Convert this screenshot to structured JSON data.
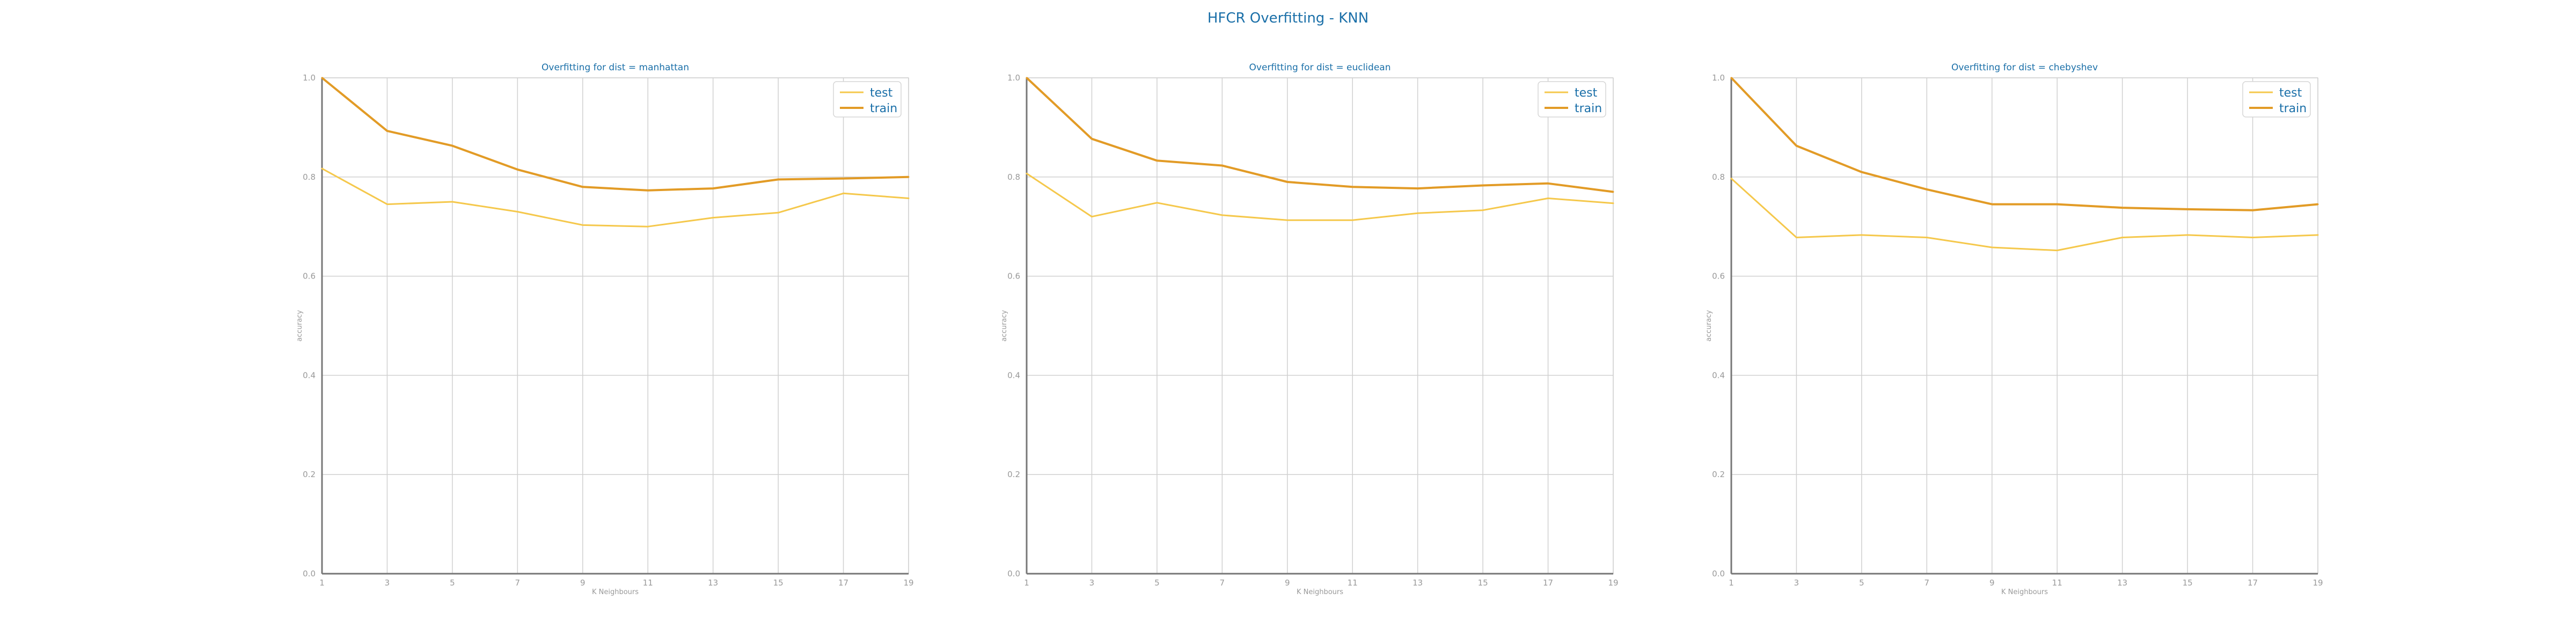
{
  "title": "HFCR Overfitting - KNN",
  "colors": {
    "test": "#f5c84c",
    "train": "#e29b26",
    "title": "#1a6fa8"
  },
  "chart_data": [
    {
      "type": "line",
      "title": "Overfitting for dist = manhattan",
      "xlabel": "K Neighbours",
      "ylabel": "accuracy",
      "x": [
        1,
        3,
        5,
        7,
        9,
        11,
        13,
        15,
        17,
        19
      ],
      "ylim": [
        0.0,
        1.0
      ],
      "yticks": [
        "0.0",
        "0.2",
        "0.4",
        "0.6",
        "0.8",
        "1.0"
      ],
      "grid": true,
      "legend": "top-right",
      "series": [
        {
          "name": "test",
          "values": [
            0.817,
            0.745,
            0.75,
            0.73,
            0.703,
            0.7,
            0.718,
            0.728,
            0.767,
            0.757
          ]
        },
        {
          "name": "train",
          "values": [
            1.0,
            0.893,
            0.863,
            0.815,
            0.78,
            0.773,
            0.777,
            0.795,
            0.797,
            0.8
          ]
        }
      ]
    },
    {
      "type": "line",
      "title": "Overfitting for dist = euclidean",
      "xlabel": "K Neighbours",
      "ylabel": "accuracy",
      "x": [
        1,
        3,
        5,
        7,
        9,
        11,
        13,
        15,
        17,
        19
      ],
      "ylim": [
        0.0,
        1.0
      ],
      "yticks": [
        "0.0",
        "0.2",
        "0.4",
        "0.6",
        "0.8",
        "1.0"
      ],
      "grid": true,
      "legend": "top-right",
      "series": [
        {
          "name": "test",
          "values": [
            0.807,
            0.72,
            0.748,
            0.723,
            0.713,
            0.713,
            0.727,
            0.733,
            0.757,
            0.747
          ]
        },
        {
          "name": "train",
          "values": [
            1.0,
            0.877,
            0.833,
            0.823,
            0.79,
            0.78,
            0.777,
            0.783,
            0.787,
            0.77
          ]
        }
      ]
    },
    {
      "type": "line",
      "title": "Overfitting for dist = chebyshev",
      "xlabel": "K Neighbours",
      "ylabel": "accuracy",
      "x": [
        1,
        3,
        5,
        7,
        9,
        11,
        13,
        15,
        17,
        19
      ],
      "ylim": [
        0.0,
        1.0
      ],
      "yticks": [
        "0.0",
        "0.2",
        "0.4",
        "0.6",
        "0.8",
        "1.0"
      ],
      "grid": true,
      "legend": "top-right",
      "series": [
        {
          "name": "test",
          "values": [
            0.797,
            0.678,
            0.683,
            0.678,
            0.658,
            0.652,
            0.678,
            0.683,
            0.678,
            0.683
          ]
        },
        {
          "name": "train",
          "values": [
            1.0,
            0.863,
            0.81,
            0.775,
            0.745,
            0.745,
            0.738,
            0.735,
            0.733,
            0.745
          ]
        }
      ]
    }
  ]
}
